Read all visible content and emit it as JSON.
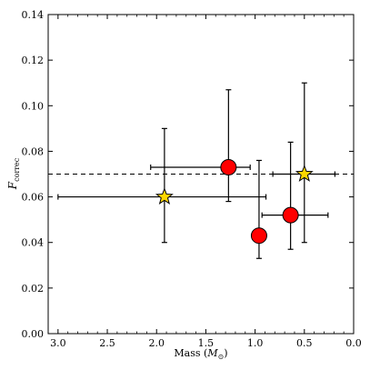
{
  "chart_data": {
    "type": "scatter",
    "xlabel_main": "Mass (",
    "xlabel_symbol": "M",
    "xlabel_sub": "⊙",
    "xlabel_close": ")",
    "ylabel_main": "F",
    "ylabel_sub": "correc",
    "xlim": [
      3.1,
      0.0
    ],
    "ylim": [
      0.0,
      0.14
    ],
    "xticks": [
      3.0,
      2.5,
      2.0,
      1.5,
      1.0,
      0.5,
      0.0
    ],
    "xtick_labels": [
      "3.0",
      "2.5",
      "2.0",
      "1.5",
      "1.0",
      "0.5",
      "0.0"
    ],
    "yticks": [
      0.0,
      0.02,
      0.04,
      0.06,
      0.08,
      0.1,
      0.12,
      0.14
    ],
    "ytick_labels": [
      "0.00",
      "0.02",
      "0.04",
      "0.06",
      "0.08",
      "0.10",
      "0.12",
      "0.14"
    ],
    "grid": false,
    "reference_line": {
      "y": 0.07,
      "style": "dashed",
      "color": "#000000"
    },
    "series": [
      {
        "marker": "circle",
        "color": "#ff0000",
        "points": [
          {
            "x": 1.27,
            "y": 0.073,
            "x_lo": 2.06,
            "x_hi": 1.05,
            "y_lo": 0.058,
            "y_hi": 0.107
          },
          {
            "x": 0.96,
            "y": 0.043,
            "x_lo": 1.03,
            "x_hi": 0.91,
            "y_lo": 0.033,
            "y_hi": 0.076
          },
          {
            "x": 0.64,
            "y": 0.052,
            "x_lo": 0.93,
            "x_hi": 0.26,
            "y_lo": 0.037,
            "y_hi": 0.084
          }
        ]
      },
      {
        "marker": "star",
        "color": "#ffd700",
        "points": [
          {
            "x": 1.92,
            "y": 0.06,
            "x_lo": 3.0,
            "x_hi": 0.89,
            "y_lo": 0.04,
            "y_hi": 0.09
          },
          {
            "x": 0.5,
            "y": 0.07,
            "x_lo": 0.82,
            "x_hi": 0.19,
            "y_lo": 0.04,
            "y_hi": 0.11
          }
        ]
      }
    ]
  }
}
